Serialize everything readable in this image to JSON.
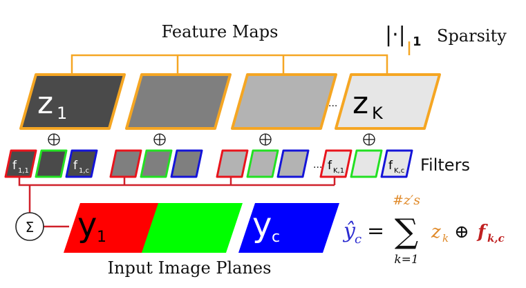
{
  "labels": {
    "feature_maps": "Feature Maps",
    "sparsity_norm": "|·|",
    "sparsity_norm_sub": "1",
    "sparsity": "Sparsity",
    "filters": "Filters",
    "input_planes": "Input Image Planes",
    "sum_symbol": "Σ",
    "ellipsis": "..."
  },
  "feature_maps": [
    {
      "label": "z",
      "sub": "1",
      "fill": "#4a4a4a"
    },
    {
      "label": "",
      "sub": "",
      "fill": "#7f7f7f"
    },
    {
      "label": "",
      "sub": "",
      "fill": "#b3b3b3"
    },
    {
      "label": "z",
      "sub": "K",
      "fill": "#e6e6e6"
    }
  ],
  "filter_groups": [
    {
      "filters": [
        {
          "label": "f",
          "sub": "1,1"
        },
        {
          "label": "",
          "sub": ""
        },
        {
          "label": "f",
          "sub": "1,c"
        }
      ]
    },
    {
      "filters": [
        {
          "label": "",
          "sub": ""
        },
        {
          "label": "",
          "sub": ""
        },
        {
          "label": "",
          "sub": ""
        }
      ]
    },
    {
      "filters": [
        {
          "label": "",
          "sub": ""
        },
        {
          "label": "",
          "sub": ""
        },
        {
          "label": "",
          "sub": ""
        }
      ]
    },
    {
      "filters": [
        {
          "label": "f",
          "sub": "K,1"
        },
        {
          "label": "",
          "sub": ""
        },
        {
          "label": "f",
          "sub": "K,c"
        }
      ]
    }
  ],
  "filter_border_colors": [
    "#e8141c",
    "#22e022",
    "#1414d8"
  ],
  "planes": [
    {
      "label": "y",
      "sub": "1",
      "fill": "#ff0000"
    },
    {
      "label": "",
      "sub": "",
      "fill": "#00ff00"
    },
    {
      "label": "y",
      "sub": "c",
      "fill": "#0000ff"
    }
  ],
  "equation": {
    "lhs": "ŷ",
    "lhs_sub": "c",
    "equals": "=",
    "sum": "∑",
    "upper": "#z′s",
    "lower": "k=1",
    "z": "z",
    "z_sub": "k",
    "oplus": "⊕",
    "f": "f",
    "f_sub": "k,c"
  },
  "colors": {
    "connector": "#f5a623",
    "red_wire": "#d0202a",
    "map_border": "#f5a623",
    "eq_blue": "#2b2bd0",
    "eq_orange": "#e08a2a",
    "eq_red": "#c02020"
  }
}
